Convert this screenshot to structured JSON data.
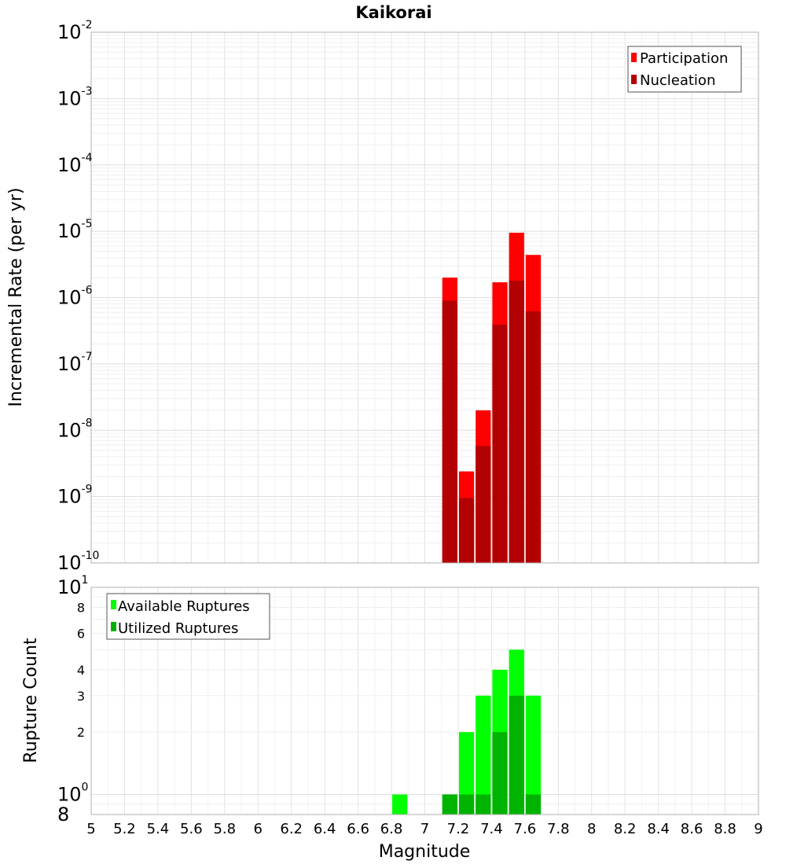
{
  "chart_data": [
    {
      "type": "bar",
      "title": "Kaikorai",
      "xlabel": "Magnitude",
      "ylabel": "Incremental Rate (per yr)",
      "yscale": "log",
      "ylim": [
        1e-10,
        0.01
      ],
      "y_tick_labels": [
        {
          "mant": "10",
          "exp": "-2"
        },
        {
          "mant": "10",
          "exp": "-3"
        },
        {
          "mant": "10",
          "exp": "-4"
        },
        {
          "mant": "10",
          "exp": "-5"
        },
        {
          "mant": "10",
          "exp": "-6"
        },
        {
          "mant": "10",
          "exp": "-7"
        },
        {
          "mant": "10",
          "exp": "-8"
        },
        {
          "mant": "10",
          "exp": "-9"
        },
        {
          "mant": "10",
          "exp": "-10"
        }
      ],
      "bar_width": 0.1,
      "series": [
        {
          "name": "Participation",
          "color": "#ff0000",
          "x": [
            7.15,
            7.25,
            7.35,
            7.45,
            7.55,
            7.65
          ],
          "values": [
            2e-06,
            2.4e-09,
            2e-08,
            1.7e-06,
            9.5e-06,
            4.4e-06
          ]
        },
        {
          "name": "Nucleation",
          "color": "#b30000",
          "x": [
            7.15,
            7.25,
            7.35,
            7.45,
            7.55,
            7.65
          ],
          "values": [
            9e-07,
            9.5e-10,
            5.8e-09,
            3.9e-07,
            1.8e-06,
            6.2e-07
          ]
        }
      ],
      "grid": true,
      "legend": "top-right"
    },
    {
      "type": "bar",
      "xlabel": "Magnitude",
      "ylabel": "Rupture Count",
      "yscale": "log",
      "ylim": [
        0.8,
        10
      ],
      "y_tick_labels": [
        {
          "value": 10,
          "mant": "10",
          "exp": "1"
        },
        {
          "value": 8,
          "minor": "8"
        },
        {
          "value": 6,
          "minor": "6"
        },
        {
          "value": 4,
          "minor": "4"
        },
        {
          "value": 3,
          "minor": "3"
        },
        {
          "value": 2,
          "minor": "2"
        },
        {
          "value": 1,
          "mant": "10",
          "exp": "0"
        },
        {
          "value": 0.8,
          "mant": "8",
          "exp": ""
        }
      ],
      "bar_width": 0.1,
      "series": [
        {
          "name": "Available Ruptures",
          "color": "#00ff00",
          "x": [
            6.85,
            7.15,
            7.25,
            7.35,
            7.45,
            7.55,
            7.65
          ],
          "values": [
            1,
            1,
            2,
            3,
            4,
            5,
            3
          ]
        },
        {
          "name": "Utilized Ruptures",
          "color": "#00b300",
          "x": [
            7.15,
            7.25,
            7.35,
            7.45,
            7.55,
            7.65
          ],
          "values": [
            1,
            1,
            1,
            2,
            3,
            1
          ]
        }
      ],
      "grid": true,
      "legend": "top-left"
    }
  ],
  "x_axis": {
    "xlim": [
      5,
      9
    ],
    "ticks": [
      "5",
      "5.2",
      "5.4",
      "5.6",
      "5.8",
      "6",
      "6.2",
      "6.4",
      "6.6",
      "6.8",
      "7",
      "7.2",
      "7.4",
      "7.6",
      "7.8",
      "8",
      "8.2",
      "8.4",
      "8.6",
      "8.8",
      "9"
    ]
  }
}
